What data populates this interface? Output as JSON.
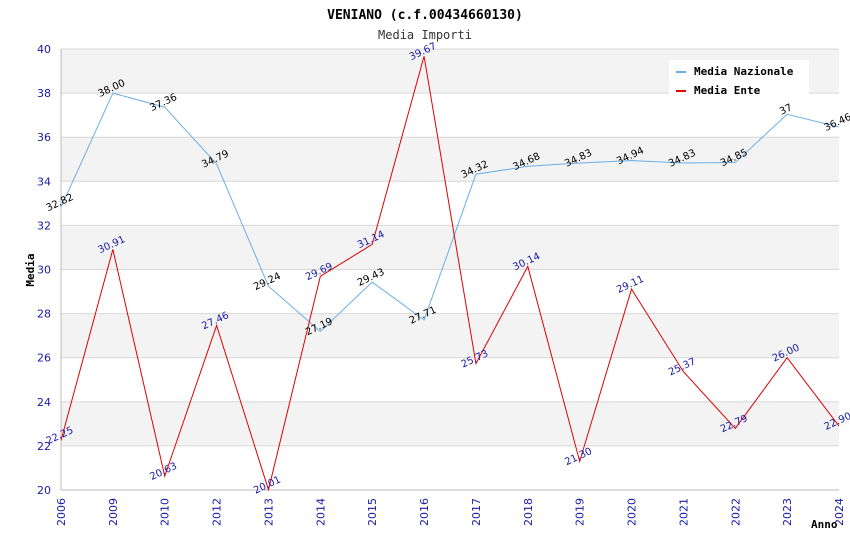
{
  "chart_data": {
    "type": "line",
    "title": "VENIANO (c.f.00434660130)",
    "subtitle": "Media Importi",
    "xlabel": "Anno",
    "ylabel": "Media",
    "ylim": [
      20,
      40
    ],
    "yticks": [
      20,
      22,
      24,
      26,
      28,
      30,
      32,
      34,
      36,
      38,
      40
    ],
    "categories": [
      "2006",
      "2009",
      "2010",
      "2012",
      "2013",
      "2014",
      "2015",
      "2016",
      "2017",
      "2018",
      "2019",
      "2020",
      "2021",
      "2022",
      "2023",
      "2024"
    ],
    "legend_position": "top-right",
    "series": [
      {
        "name": "Media Nazionale",
        "color": "#6aaee6",
        "values": [
          32.82,
          38.0,
          37.36,
          34.79,
          29.24,
          27.19,
          29.43,
          27.71,
          34.32,
          34.68,
          34.83,
          34.94,
          34.83,
          34.85,
          37.04,
          36.46
        ],
        "labels": [
          "32.82",
          "38.00",
          "37.36",
          "34.79",
          "29.24",
          "27.19",
          "29.43",
          "27.71",
          "34.32",
          "34.68",
          "34.83",
          "34.94",
          "34.83",
          "34.85",
          "37",
          "36.46"
        ]
      },
      {
        "name": "Media Ente",
        "color": "#e00000",
        "values": [
          22.25,
          30.91,
          20.63,
          27.46,
          20.01,
          29.69,
          31.14,
          39.67,
          25.73,
          30.14,
          21.3,
          29.11,
          25.37,
          22.79,
          26.0,
          22.9
        ],
        "labels": [
          "22.25",
          "30.91",
          "20.63",
          "27.46",
          "20.01",
          "29.69",
          "31.14",
          "39.67",
          "25.73",
          "30.14",
          "21.30",
          "29.11",
          "25.37",
          "22.79",
          "26.00",
          "22.90"
        ]
      }
    ]
  }
}
